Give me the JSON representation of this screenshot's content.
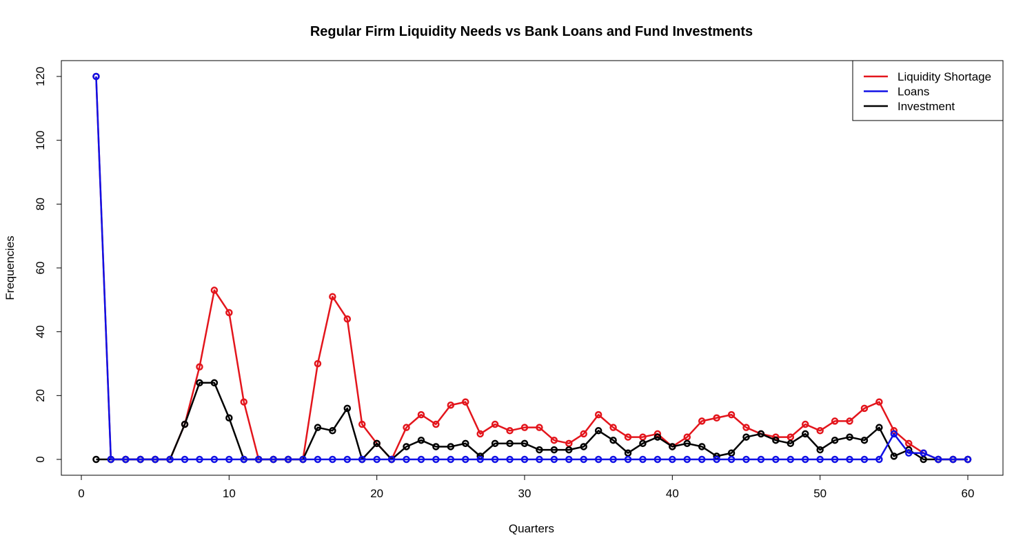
{
  "chart_data": {
    "type": "line",
    "title": "Regular Firm Liquidity Needs vs Bank Loans and Fund Investments",
    "xlabel": "Quarters",
    "ylabel": "Frequencies",
    "xlim": [
      1,
      60
    ],
    "ylim": [
      0,
      120
    ],
    "xticks": [
      0,
      10,
      20,
      30,
      40,
      50,
      60
    ],
    "yticks": [
      0,
      20,
      40,
      60,
      80,
      100,
      120
    ],
    "grid": false,
    "legend_position": "top-right",
    "x": [
      1,
      2,
      3,
      4,
      5,
      6,
      7,
      8,
      9,
      10,
      11,
      12,
      13,
      14,
      15,
      16,
      17,
      18,
      19,
      20,
      21,
      22,
      23,
      24,
      25,
      26,
      27,
      28,
      29,
      30,
      31,
      32,
      33,
      34,
      35,
      36,
      37,
      38,
      39,
      40,
      41,
      42,
      43,
      44,
      45,
      46,
      47,
      48,
      49,
      50,
      51,
      52,
      53,
      54,
      55,
      56,
      57,
      58,
      59,
      60
    ],
    "series": [
      {
        "name": "Liquidity Shortage",
        "color": "#e3151c",
        "values": [
          120,
          0,
          0,
          0,
          0,
          0,
          11,
          29,
          53,
          46,
          18,
          0,
          0,
          0,
          0,
          30,
          51,
          44,
          11,
          5,
          0,
          10,
          14,
          11,
          17,
          18,
          8,
          11,
          9,
          10,
          10,
          6,
          5,
          8,
          14,
          10,
          7,
          7,
          8,
          4,
          7,
          12,
          13,
          14,
          10,
          8,
          7,
          7,
          11,
          9,
          12,
          12,
          16,
          18,
          9,
          5,
          2,
          0,
          0,
          0
        ]
      },
      {
        "name": "Investment",
        "color": "#000000",
        "values": [
          0,
          0,
          0,
          0,
          0,
          0,
          11,
          24,
          24,
          13,
          0,
          0,
          0,
          0,
          0,
          10,
          9,
          16,
          0,
          5,
          0,
          4,
          6,
          4,
          4,
          5,
          1,
          5,
          5,
          5,
          3,
          3,
          3,
          4,
          9,
          6,
          2,
          5,
          7,
          4,
          5,
          4,
          1,
          2,
          7,
          8,
          6,
          5,
          8,
          3,
          6,
          7,
          6,
          10,
          1,
          3,
          0,
          0,
          0,
          0
        ]
      },
      {
        "name": "Loans",
        "color": "#1010e6",
        "values": [
          120,
          0,
          0,
          0,
          0,
          0,
          0,
          0,
          0,
          0,
          0,
          0,
          0,
          0,
          0,
          0,
          0,
          0,
          0,
          0,
          0,
          0,
          0,
          0,
          0,
          0,
          0,
          0,
          0,
          0,
          0,
          0,
          0,
          0,
          0,
          0,
          0,
          0,
          0,
          0,
          0,
          0,
          0,
          0,
          0,
          0,
          0,
          0,
          0,
          0,
          0,
          0,
          0,
          0,
          8,
          2,
          2,
          0,
          0,
          0
        ]
      }
    ],
    "legend": [
      {
        "label": "Liquidity Shortage",
        "color": "#e3151c"
      },
      {
        "label": "Loans",
        "color": "#1010e6"
      },
      {
        "label": "Investment",
        "color": "#000000"
      }
    ]
  }
}
